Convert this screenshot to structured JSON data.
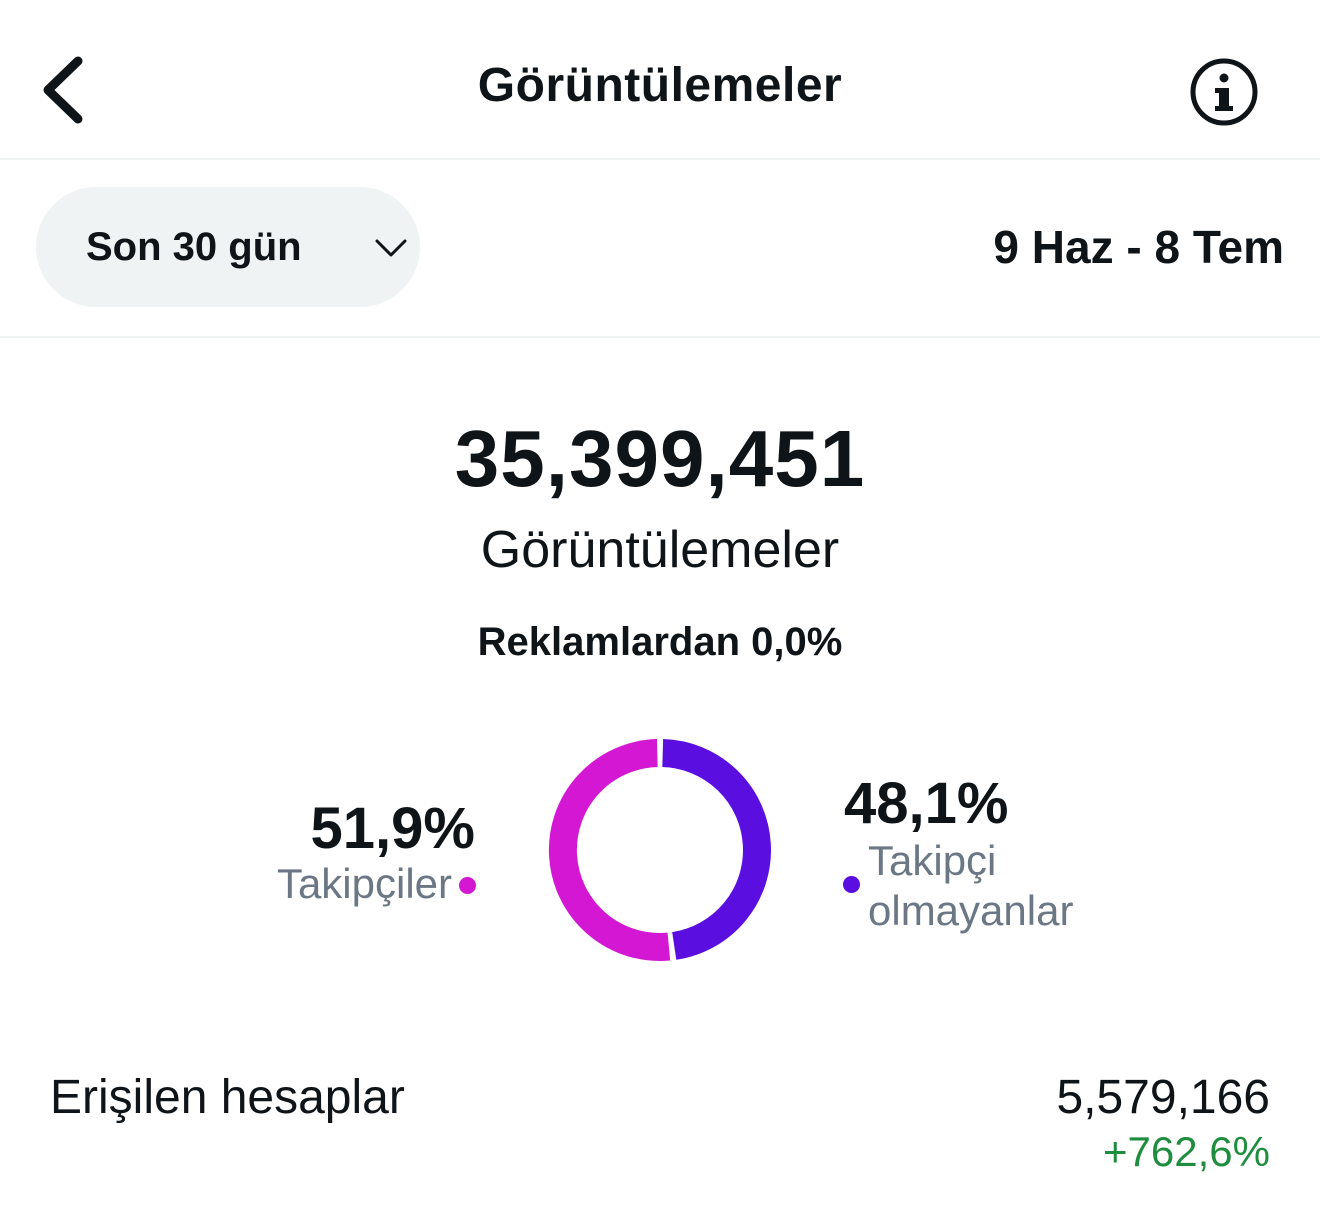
{
  "header": {
    "title": "Görüntülemeler",
    "back_icon": "chevron-left-icon",
    "info_icon": "info-icon"
  },
  "filter": {
    "range_label": "Son 30 gün",
    "dropdown_icon": "chevron-down-icon",
    "date_range": "9 Haz - 8 Tem"
  },
  "summary": {
    "total": "35,399,451",
    "label": "Görüntülemeler",
    "ads_text": "Reklamlardan 0,0%"
  },
  "breakdown": {
    "followers": {
      "percent_label": "51,9%",
      "label": "Takipçiler",
      "value": 51.9,
      "color": "#d317d3"
    },
    "non_followers": {
      "percent_label": "48,1%",
      "label_line1": "Takipçi",
      "label_line2": "olmayanlar",
      "value": 48.1,
      "color": "#5a0ee0"
    }
  },
  "reach": {
    "label": "Erişilen hesaplar",
    "value": "5,579,166",
    "change": "+762,6%",
    "change_color": "#1e8e3e"
  }
}
